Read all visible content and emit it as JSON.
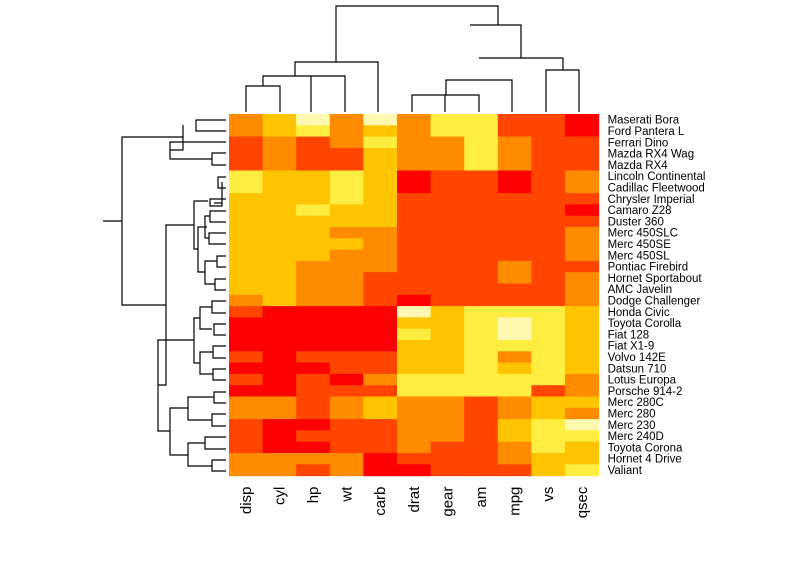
{
  "chart_data": {
    "type": "heatmap",
    "title": "",
    "xlabel": "",
    "ylabel": "",
    "color_scale": [
      "#ff0000",
      "#ff4500",
      "#ff8c00",
      "#ffc400",
      "#ffee40",
      "#fff8b0"
    ],
    "columns": [
      "disp",
      "cyl",
      "hp",
      "wt",
      "carb",
      "drat",
      "gear",
      "am",
      "mpg",
      "vs",
      "qsec"
    ],
    "rows": [
      "Maserati Bora",
      "Ford Pantera L",
      "Ferrari Dino",
      "Mazda RX4 Wag",
      "Mazda RX4",
      "Lincoln Continental",
      "Cadillac Fleetwood",
      "Chrysler Imperial",
      "Camaro Z28",
      "Duster 360",
      "Merc 450SLC",
      "Merc 450SE",
      "Merc 450SL",
      "Pontiac Firebird",
      "Hornet Sportabout",
      "AMC Javelin",
      "Dodge Challenger",
      "Honda Civic",
      "Toyota Corolla",
      "Fiat 128",
      "Fiat X1-9",
      "Volvo 142E",
      "Datsun 710",
      "Lotus Europa",
      "Porsche 914-2",
      "Merc 280C",
      "Merc 280",
      "Merc 230",
      "Merc 240D",
      "Toyota Corona",
      "Hornet 4 Drive",
      "Valiant"
    ],
    "values": [
      [
        2,
        3,
        5,
        2,
        5,
        2,
        4,
        4,
        1,
        1,
        0
      ],
      [
        2,
        3,
        4,
        2,
        3,
        2,
        4,
        4,
        1,
        1,
        0
      ],
      [
        1,
        2,
        1,
        2,
        4,
        2,
        2,
        4,
        2,
        1,
        1
      ],
      [
        1,
        2,
        1,
        1,
        3,
        2,
        2,
        4,
        2,
        1,
        1
      ],
      [
        1,
        2,
        1,
        1,
        3,
        2,
        2,
        4,
        2,
        1,
        1
      ],
      [
        4,
        3,
        3,
        4,
        3,
        0,
        1,
        1,
        0,
        1,
        2
      ],
      [
        4,
        3,
        3,
        4,
        3,
        0,
        1,
        1,
        0,
        1,
        2
      ],
      [
        3,
        3,
        3,
        4,
        3,
        1,
        1,
        1,
        1,
        1,
        1
      ],
      [
        3,
        3,
        4,
        3,
        3,
        1,
        1,
        1,
        1,
        1,
        0
      ],
      [
        3,
        3,
        3,
        3,
        3,
        1,
        1,
        1,
        1,
        1,
        1
      ],
      [
        3,
        3,
        3,
        2,
        2,
        1,
        1,
        1,
        1,
        1,
        2
      ],
      [
        3,
        3,
        3,
        3,
        2,
        1,
        1,
        1,
        1,
        1,
        2
      ],
      [
        3,
        3,
        3,
        2,
        2,
        1,
        1,
        1,
        1,
        1,
        2
      ],
      [
        3,
        3,
        2,
        2,
        2,
        1,
        1,
        1,
        2,
        1,
        1
      ],
      [
        3,
        3,
        2,
        2,
        1,
        1,
        1,
        1,
        2,
        1,
        2
      ],
      [
        3,
        3,
        2,
        2,
        1,
        1,
        1,
        1,
        1,
        1,
        2
      ],
      [
        2,
        3,
        2,
        2,
        1,
        0,
        1,
        1,
        1,
        1,
        2
      ],
      [
        1,
        0,
        0,
        0,
        0,
        5,
        3,
        4,
        4,
        4,
        3
      ],
      [
        0,
        0,
        0,
        0,
        0,
        3,
        3,
        4,
        5,
        4,
        3
      ],
      [
        0,
        0,
        0,
        0,
        0,
        4,
        3,
        4,
        5,
        4,
        3
      ],
      [
        0,
        0,
        0,
        0,
        0,
        3,
        3,
        4,
        4,
        4,
        3
      ],
      [
        1,
        0,
        1,
        1,
        1,
        3,
        3,
        4,
        2,
        4,
        3
      ],
      [
        0,
        0,
        0,
        1,
        1,
        3,
        3,
        4,
        3,
        4,
        3
      ],
      [
        1,
        0,
        1,
        0,
        2,
        4,
        4,
        4,
        4,
        4,
        2
      ],
      [
        0,
        0,
        1,
        1,
        1,
        4,
        4,
        4,
        4,
        1,
        2
      ],
      [
        2,
        2,
        1,
        2,
        3,
        2,
        2,
        1,
        2,
        3,
        3
      ],
      [
        2,
        2,
        1,
        2,
        3,
        2,
        2,
        1,
        2,
        3,
        2
      ],
      [
        1,
        0,
        0,
        1,
        1,
        2,
        2,
        1,
        3,
        4,
        5
      ],
      [
        1,
        0,
        1,
        1,
        1,
        2,
        2,
        1,
        3,
        4,
        4
      ],
      [
        1,
        0,
        0,
        1,
        1,
        2,
        1,
        1,
        2,
        4,
        3
      ],
      [
        2,
        2,
        2,
        2,
        0,
        1,
        1,
        1,
        2,
        3,
        3
      ],
      [
        2,
        2,
        1,
        2,
        0,
        0,
        1,
        1,
        1,
        3,
        4
      ]
    ]
  }
}
